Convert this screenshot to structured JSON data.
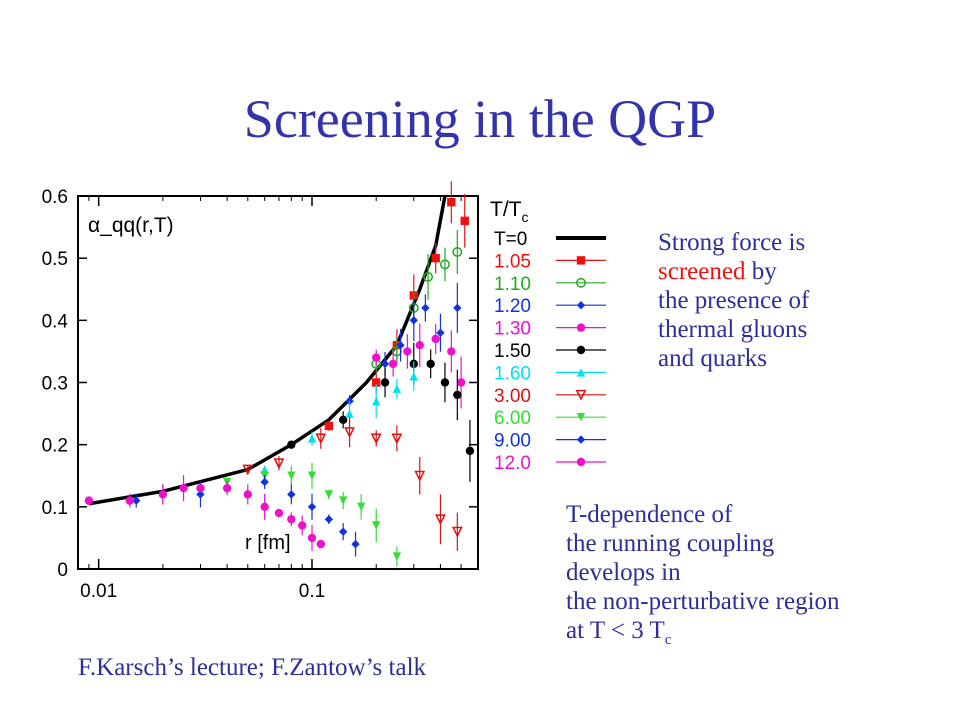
{
  "title": "Screening in the QGP",
  "note_top": {
    "line1": "Strong force is",
    "line2_red": "screened",
    "line2_rest": " by",
    "line3": "the presence of",
    "line4": "thermal gluons",
    "line5": "and quarks"
  },
  "note_bottom": {
    "line1": "T-dependence of",
    "line2": "the running coupling",
    "line3": "develops in",
    "line4": "the non-perturbative region",
    "line5_prefix": "at T < 3 T",
    "line5_sub": "c"
  },
  "credit": "F.Karsch’s lecture; F.Zantow’s talk",
  "chart_data": {
    "type": "scatter",
    "ylabel": "α_qq(r,T)",
    "xlabel": "r [fm]",
    "x_scale": "log",
    "xlim": [
      0.008,
      0.6
    ],
    "ylim": [
      0,
      0.6
    ],
    "x_ticks": [
      {
        "v": 0.01,
        "label": "0.01"
      },
      {
        "v": 0.1,
        "label": "0.1"
      }
    ],
    "y_ticks": [
      {
        "v": 0,
        "label": "0"
      },
      {
        "v": 0.1,
        "label": "0.1"
      },
      {
        "v": 0.2,
        "label": "0.2"
      },
      {
        "v": 0.3,
        "label": "0.3"
      },
      {
        "v": 0.4,
        "label": "0.4"
      },
      {
        "v": 0.5,
        "label": "0.5"
      },
      {
        "v": 0.6,
        "label": "0.6"
      }
    ],
    "grid": false,
    "legend_title": "T/T",
    "legend_title_sub": "c",
    "legend_position": "right",
    "series": [
      {
        "name": "T=0",
        "color": "#000000",
        "marker": "line",
        "x": [
          0.009,
          0.02,
          0.05,
          0.08,
          0.12,
          0.18,
          0.25,
          0.32,
          0.38,
          0.42
        ],
        "y": [
          0.105,
          0.125,
          0.16,
          0.2,
          0.24,
          0.3,
          0.36,
          0.45,
          0.52,
          0.6
        ]
      },
      {
        "name": "1.05",
        "color": "#ee1111",
        "marker": "square",
        "x": [
          0.12,
          0.2,
          0.25,
          0.3,
          0.38,
          0.45,
          0.52
        ],
        "y": [
          0.23,
          0.3,
          0.36,
          0.44,
          0.5,
          0.59,
          0.56
        ]
      },
      {
        "name": "1.10",
        "color": "#22aa22",
        "marker": "circle-open",
        "x": [
          0.2,
          0.25,
          0.3,
          0.35,
          0.42,
          0.48
        ],
        "y": [
          0.33,
          0.35,
          0.42,
          0.47,
          0.49,
          0.51
        ]
      },
      {
        "name": "1.20",
        "color": "#1133dd",
        "marker": "diamond",
        "x": [
          0.15,
          0.22,
          0.26,
          0.3,
          0.34,
          0.4,
          0.48
        ],
        "y": [
          0.27,
          0.33,
          0.36,
          0.4,
          0.42,
          0.38,
          0.42
        ]
      },
      {
        "name": "1.30",
        "color": "#ee11cc",
        "marker": "circle",
        "x": [
          0.2,
          0.24,
          0.28,
          0.32,
          0.38,
          0.45,
          0.5
        ],
        "y": [
          0.34,
          0.33,
          0.35,
          0.36,
          0.37,
          0.35,
          0.3
        ]
      },
      {
        "name": "1.50",
        "color": "#000000",
        "marker": "circle",
        "x": [
          0.08,
          0.14,
          0.22,
          0.3,
          0.36,
          0.42,
          0.48,
          0.55
        ],
        "y": [
          0.2,
          0.24,
          0.3,
          0.33,
          0.33,
          0.3,
          0.28,
          0.19
        ]
      },
      {
        "name": "1.60",
        "color": "#00e0ee",
        "marker": "triangle",
        "x": [
          0.06,
          0.1,
          0.15,
          0.2,
          0.25,
          0.3
        ],
        "y": [
          0.16,
          0.21,
          0.25,
          0.27,
          0.29,
          0.31
        ]
      },
      {
        "name": "3.00",
        "color": "#dd1111",
        "marker": "triangle-down-open",
        "x": [
          0.05,
          0.07,
          0.11,
          0.15,
          0.2,
          0.25,
          0.32,
          0.4,
          0.48
        ],
        "y": [
          0.16,
          0.17,
          0.21,
          0.22,
          0.21,
          0.21,
          0.15,
          0.08,
          0.06
        ]
      },
      {
        "name": "6.00",
        "color": "#33dd33",
        "marker": "triangle-down",
        "x": [
          0.04,
          0.06,
          0.08,
          0.1,
          0.12,
          0.14,
          0.17,
          0.2,
          0.25
        ],
        "y": [
          0.14,
          0.15,
          0.15,
          0.15,
          0.12,
          0.11,
          0.1,
          0.07,
          0.02
        ]
      },
      {
        "name": "9.00",
        "color": "#1133dd",
        "marker": "diamond",
        "x": [
          0.009,
          0.015,
          0.02,
          0.03,
          0.04,
          0.06,
          0.08,
          0.1,
          0.12,
          0.14,
          0.16
        ],
        "y": [
          0.11,
          0.11,
          0.12,
          0.12,
          0.13,
          0.14,
          0.12,
          0.1,
          0.08,
          0.06,
          0.04
        ]
      },
      {
        "name": "12.0",
        "color": "#ee11cc",
        "marker": "circle",
        "x": [
          0.009,
          0.014,
          0.02,
          0.025,
          0.03,
          0.04,
          0.05,
          0.06,
          0.07,
          0.08,
          0.09,
          0.1,
          0.11
        ],
        "y": [
          0.11,
          0.11,
          0.12,
          0.13,
          0.13,
          0.13,
          0.12,
          0.1,
          0.09,
          0.08,
          0.07,
          0.05,
          0.04
        ]
      }
    ]
  }
}
